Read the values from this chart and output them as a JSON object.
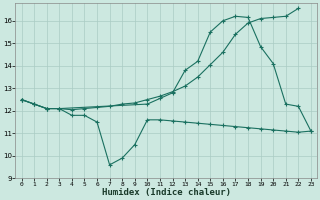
{
  "xlabel": "Humidex (Indice chaleur)",
  "bg_color": "#cce8e0",
  "grid_color": "#aaccc4",
  "line_color": "#1a7060",
  "xlim": [
    -0.5,
    23.5
  ],
  "ylim": [
    9,
    16.8
  ],
  "yticks": [
    9,
    10,
    11,
    12,
    13,
    14,
    15,
    16
  ],
  "xticks": [
    0,
    1,
    2,
    3,
    4,
    5,
    6,
    7,
    8,
    9,
    10,
    11,
    12,
    13,
    14,
    15,
    16,
    17,
    18,
    19,
    20,
    21,
    22,
    23
  ],
  "line1_x": [
    0,
    1,
    2,
    3,
    4,
    5,
    6,
    7,
    8,
    9,
    10,
    11,
    12,
    13,
    14,
    15,
    16,
    17,
    18,
    19,
    20,
    21,
    22,
    23
  ],
  "line1_y": [
    12.5,
    12.3,
    12.1,
    12.1,
    11.8,
    11.8,
    11.5,
    9.6,
    9.9,
    10.5,
    11.6,
    11.6,
    11.55,
    11.5,
    11.45,
    11.4,
    11.35,
    11.3,
    11.25,
    11.2,
    11.15,
    11.1,
    11.05,
    11.1
  ],
  "line2_x": [
    0,
    1,
    2,
    3,
    4,
    5,
    6,
    7,
    8,
    9,
    10,
    11,
    12,
    13,
    14,
    15,
    16,
    17,
    18,
    19,
    20,
    21,
    22
  ],
  "line2_y": [
    12.5,
    12.3,
    12.1,
    12.1,
    12.05,
    12.1,
    12.15,
    12.2,
    12.3,
    12.35,
    12.5,
    12.65,
    12.85,
    13.1,
    13.5,
    14.05,
    14.6,
    15.4,
    15.9,
    16.1,
    16.15,
    16.2,
    16.55
  ],
  "line3_x": [
    0,
    1,
    2,
    3,
    10,
    11,
    12,
    13,
    14,
    15,
    16,
    17,
    18,
    19,
    20,
    21,
    22,
    23
  ],
  "line3_y": [
    12.5,
    12.3,
    12.1,
    12.1,
    12.3,
    12.55,
    12.8,
    13.8,
    14.2,
    15.5,
    16.0,
    16.2,
    16.15,
    14.85,
    14.1,
    12.3,
    12.2,
    11.1
  ]
}
